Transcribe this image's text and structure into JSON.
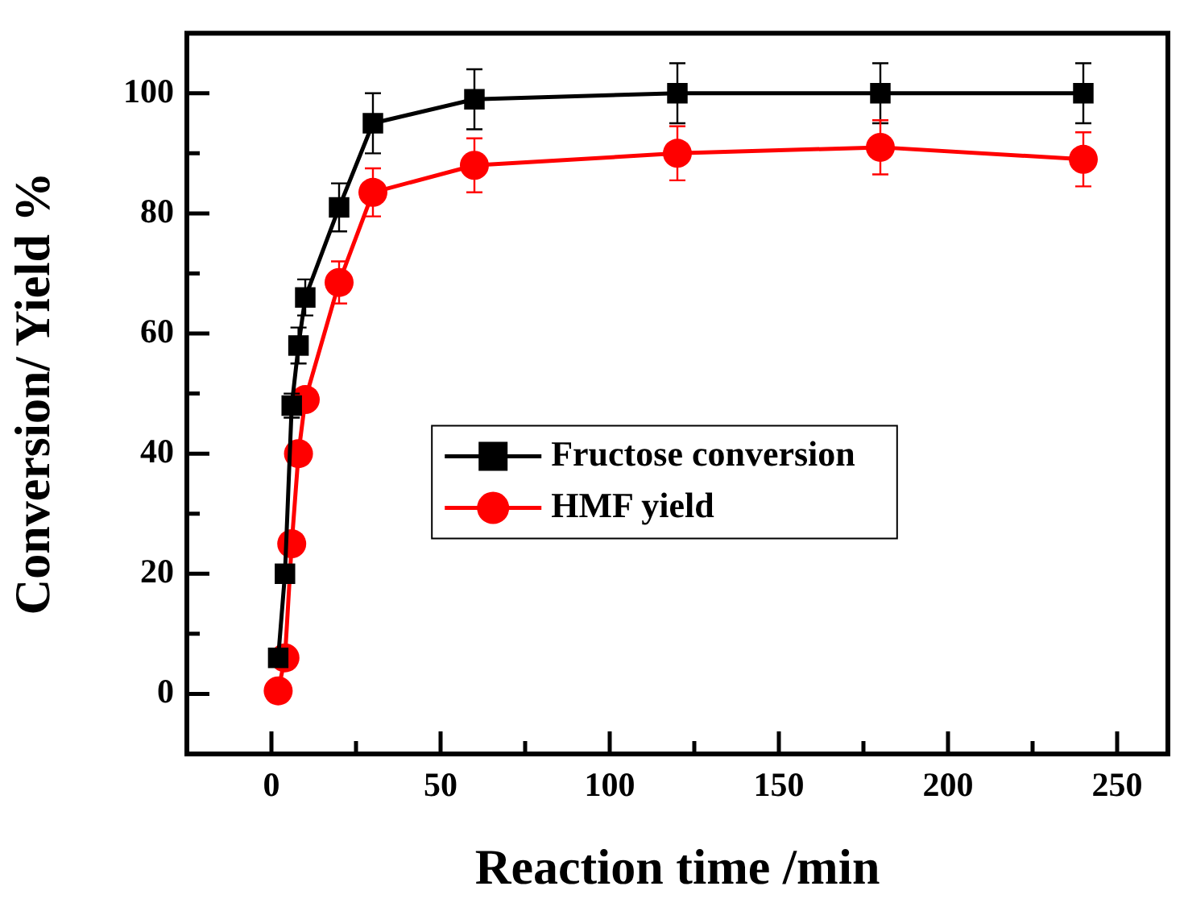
{
  "chart_data": {
    "type": "line",
    "xlabel": "Reaction time /min",
    "ylabel": "Conversion/ Yield %",
    "xlim": [
      -25,
      265
    ],
    "xticks": [
      0,
      50,
      100,
      150,
      200,
      250
    ],
    "ylim": [
      -10,
      110
    ],
    "yticks": [
      0,
      20,
      40,
      60,
      80,
      100
    ],
    "grid": false,
    "legend": "center",
    "line_style": "solid",
    "series": [
      {
        "name": "Fructose conversion",
        "color": "#000000",
        "marker": "square",
        "x": [
          2,
          4,
          6,
          8,
          10,
          20,
          30,
          60,
          120,
          180,
          240
        ],
        "values": [
          6,
          20,
          48,
          58,
          66,
          81,
          95,
          99,
          100,
          100,
          100
        ],
        "errors": [
          null,
          null,
          2,
          3,
          3,
          4,
          5,
          5,
          5,
          5,
          5
        ]
      },
      {
        "name": "HMF yield",
        "color": "#ff0000",
        "marker": "circle",
        "x": [
          2,
          4,
          6,
          8,
          10,
          20,
          30,
          60,
          120,
          180,
          240
        ],
        "values": [
          0.5,
          6,
          25,
          40,
          49,
          68.5,
          83.5,
          88,
          90,
          91,
          89
        ],
        "errors": [
          null,
          null,
          null,
          null,
          null,
          3.5,
          4,
          4.5,
          4.5,
          4.5,
          4.5
        ]
      }
    ]
  }
}
